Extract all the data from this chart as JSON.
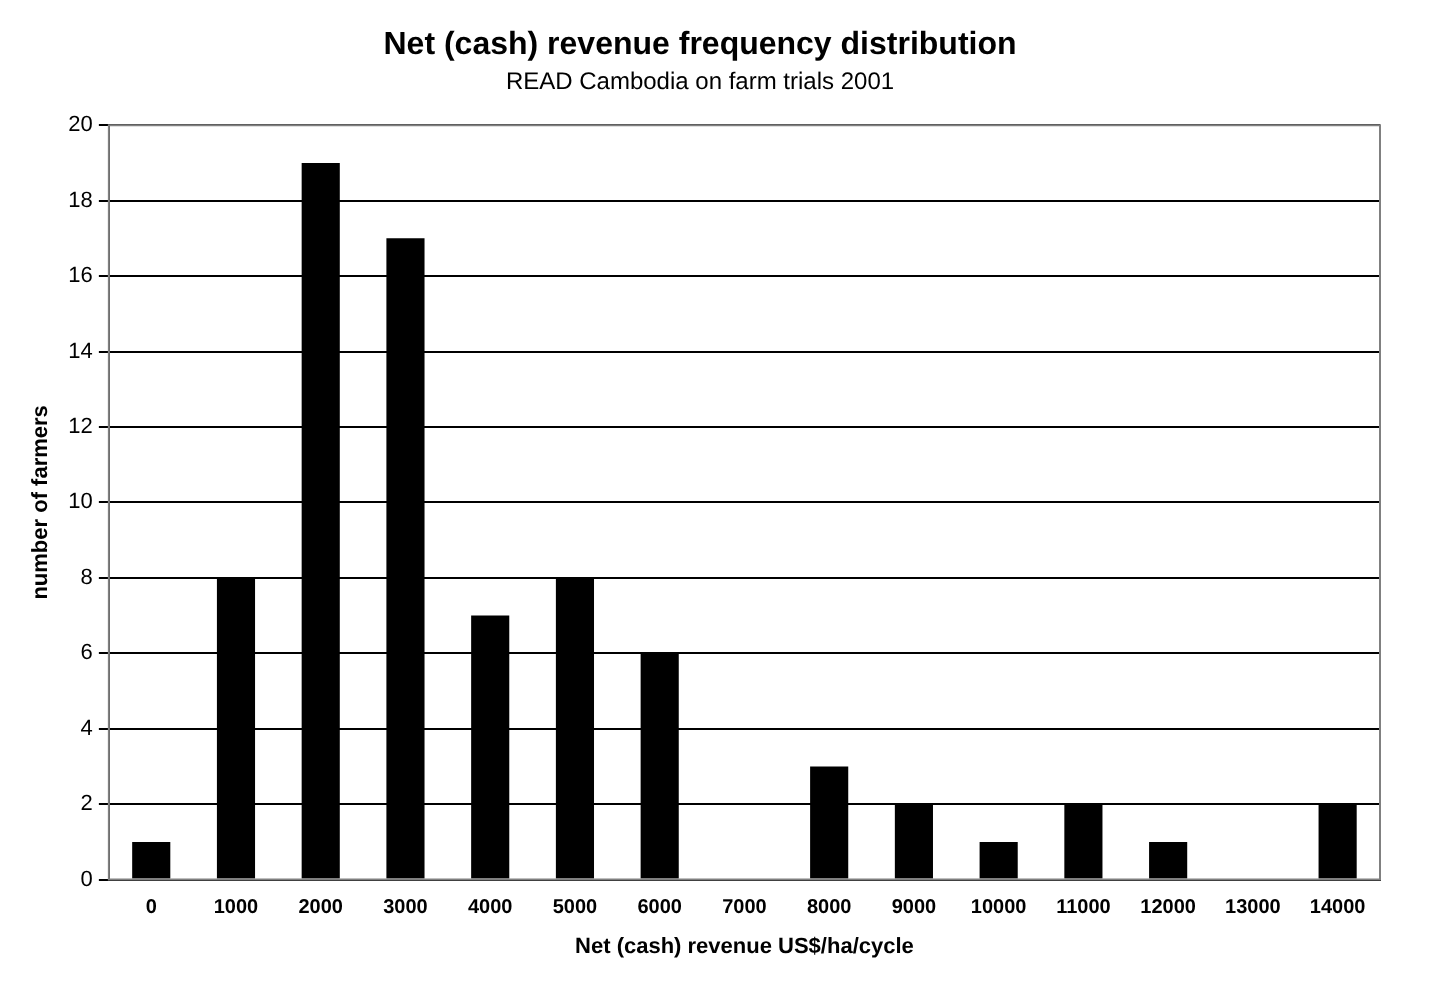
{
  "chart_data": {
    "type": "bar",
    "title": "Net (cash) revenue frequency distribution",
    "subtitle": "READ Cambodia on farm trials 2001",
    "xlabel": "Net (cash) revenue US$/ha/cycle",
    "ylabel": "number of farmers",
    "categories": [
      "0",
      "1000",
      "2000",
      "3000",
      "4000",
      "5000",
      "6000",
      "7000",
      "8000",
      "9000",
      "10000",
      "11000",
      "12000",
      "13000",
      "14000"
    ],
    "values": [
      1,
      8,
      19,
      17,
      7,
      8,
      6,
      0,
      3,
      2,
      1,
      2,
      1,
      0,
      2
    ],
    "color": "#000000",
    "ylim": [
      0,
      20
    ],
    "yticks": [
      0,
      2,
      4,
      6,
      8,
      10,
      12,
      14,
      16,
      18,
      20
    ],
    "grid": "y"
  }
}
